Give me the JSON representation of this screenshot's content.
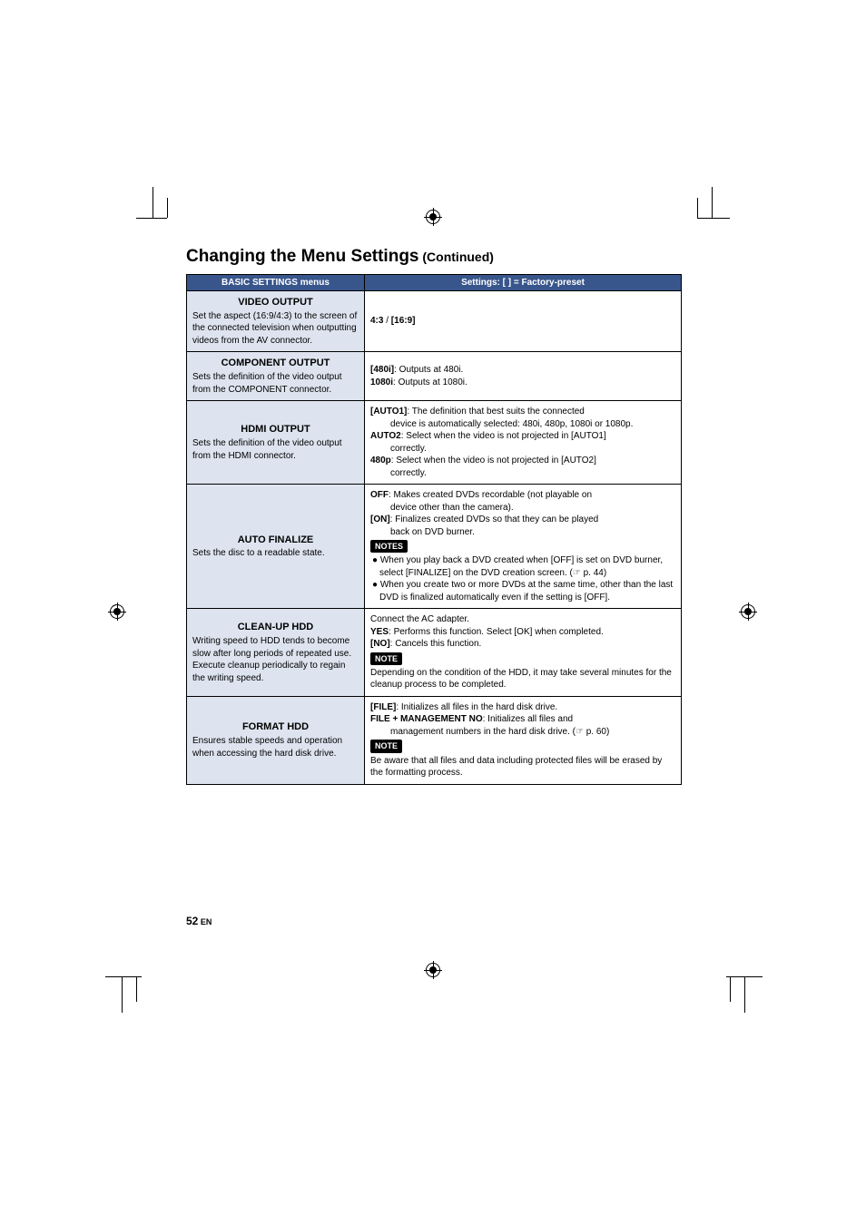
{
  "page": {
    "title_main": "Changing the Menu Settings",
    "title_cont": " (Continued)",
    "number": "52",
    "lang": " EN"
  },
  "header": {
    "left": "BASIC SETTINGS menus",
    "right": "Settings: [ ] = Factory-preset"
  },
  "rows": {
    "video_output": {
      "title": "VIDEO OUTPUT",
      "desc": "Set the aspect (16:9/4:3) to the screen of the connected television when outputting videos from the AV connector.",
      "right_b1": "4:3",
      "right_sep": " / ",
      "right_b2": "[16:9]"
    },
    "component_output": {
      "title": "COMPONENT OUTPUT",
      "desc": "Sets the definition of the video output from the COMPONENT connector.",
      "l1_b": "[480i]",
      "l1_t": ": Outputs at 480i.",
      "l2_b": "1080i",
      "l2_t": ": Outputs at 1080i."
    },
    "hdmi_output": {
      "title": "HDMI OUTPUT",
      "desc": "Sets the definition of the video output from the HDMI connector.",
      "l1_b": "[AUTO1]",
      "l1_t": ": The definition that best suits the connected",
      "l1_cont": "device is automatically selected: 480i, 480p, 1080i or 1080p.",
      "l2_b": "AUTO2",
      "l2_t": ": Select when the video is not projected in [AUTO1]",
      "l2_cont": "correctly.",
      "l3_b": "480p",
      "l3_t": ": Select when the video is not projected in [AUTO2]",
      "l3_cont": "correctly."
    },
    "auto_finalize": {
      "title": "AUTO FINALIZE",
      "desc": "Sets the disc to a readable state.",
      "l1_b": "OFF",
      "l1_t": ": Makes created DVDs recordable (not playable on",
      "l1_cont": "device other than the camera).",
      "l2_b": "[ON]",
      "l2_t": ": Finalizes created DVDs so that they can be played",
      "l2_cont": "back on DVD burner.",
      "tag": "NOTES",
      "b1": "● When you play back a DVD created when [OFF] is set on DVD burner, select [FINALIZE] on the DVD creation screen. (☞ p. 44)",
      "b2": "● When you create two or more DVDs at the same time, other than the last DVD is finalized automatically even if the setting is [OFF]."
    },
    "cleanup_hdd": {
      "title": "CLEAN-UP HDD",
      "desc": "Writing speed to HDD tends to become slow after long periods of repeated use. Execute cleanup periodically to regain the writing speed.",
      "l1": "Connect the AC adapter.",
      "l2_b": "YES",
      "l2_t": ": Performs this function. Select [OK] when completed.",
      "l3_b": "[NO]",
      "l3_t": ": Cancels this function.",
      "tag": "NOTE",
      "note": "Depending on the condition of the HDD, it may take several minutes for the cleanup process to be completed."
    },
    "format_hdd": {
      "title": "FORMAT HDD",
      "desc": "Ensures stable speeds and operation when accessing the hard disk drive.",
      "l1_b": "[FILE]",
      "l1_t": ": Initializes all files in the hard disk drive.",
      "l2_b": "FILE + MANAGEMENT NO",
      "l2_t": ": Initializes all files and",
      "l2_cont": "management numbers in the hard disk drive. (☞ p. 60)",
      "tag": "NOTE",
      "note": "Be aware that all files and data including protected files will be erased by the formatting process."
    }
  }
}
